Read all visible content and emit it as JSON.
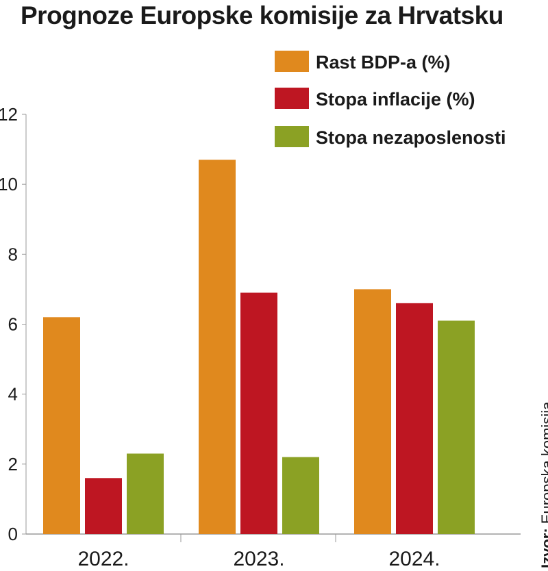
{
  "title": "Prognoze Europske komisije za Hrvatsku",
  "source": {
    "label": "Izvor:",
    "value": "Europska komisija"
  },
  "chart_data": {
    "type": "bar",
    "title": "Prognoze Europske komisije za Hrvatsku",
    "categories": [
      "2022.",
      "2023.",
      "2024."
    ],
    "series": [
      {
        "name": "Rast BDP-a (%)",
        "color": "#E0891E",
        "values": [
          6.2,
          10.7,
          7.0
        ]
      },
      {
        "name": "Stopa inflacije (%)",
        "color": "#BE1622",
        "values": [
          1.6,
          6.9,
          6.6
        ]
      },
      {
        "name": "Stopa nezaposlenosti",
        "color": "#8BA124",
        "values": [
          2.3,
          2.2,
          6.1
        ]
      }
    ],
    "yticks": [
      0,
      2,
      4,
      6,
      8,
      10,
      12
    ],
    "ylim": [
      0,
      12
    ],
    "xlabel": "",
    "ylabel": "",
    "grid": false,
    "legend_position": "top-right"
  }
}
